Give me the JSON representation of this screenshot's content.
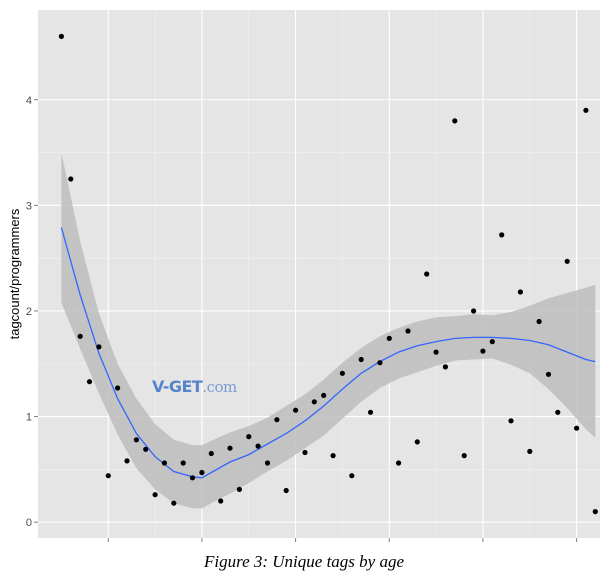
{
  "figure": {
    "caption": "Figure 3: Unique tags by age",
    "watermark": {
      "brand": "V-GET",
      "suffix": ".com"
    }
  },
  "chart_data": {
    "type": "scatter",
    "title": "",
    "xlabel": "",
    "ylabel": "tagcount/programmers",
    "xlim": [
      0.25,
      6.25
    ],
    "ylim": [
      -0.15,
      4.85
    ],
    "x_ticks": [
      1,
      2,
      3,
      4,
      5,
      6
    ],
    "x_tick_labels": [
      "",
      "",
      "",
      "",
      "",
      ""
    ],
    "y_ticks": [
      0,
      1,
      2,
      3,
      4
    ],
    "y_tick_labels": [
      "0",
      "1",
      "2",
      "3",
      "4"
    ],
    "grid": true,
    "colors": {
      "panel": "#e5e5e5",
      "grid": "#ffffff",
      "points": "#000000",
      "smooth_line": "#3366ff",
      "ribbon": "#bdbdbd"
    },
    "points": [
      {
        "x": 0.5,
        "y": 4.6
      },
      {
        "x": 0.6,
        "y": 3.25
      },
      {
        "x": 0.7,
        "y": 1.76
      },
      {
        "x": 0.8,
        "y": 1.33
      },
      {
        "x": 0.9,
        "y": 1.66
      },
      {
        "x": 1.0,
        "y": 0.44
      },
      {
        "x": 1.1,
        "y": 1.27
      },
      {
        "x": 1.2,
        "y": 0.58
      },
      {
        "x": 1.3,
        "y": 0.78
      },
      {
        "x": 1.4,
        "y": 0.69
      },
      {
        "x": 1.5,
        "y": 0.26
      },
      {
        "x": 1.6,
        "y": 0.56
      },
      {
        "x": 1.7,
        "y": 0.18
      },
      {
        "x": 1.8,
        "y": 0.56
      },
      {
        "x": 1.9,
        "y": 0.42
      },
      {
        "x": 2.0,
        "y": 0.47
      },
      {
        "x": 2.1,
        "y": 0.65
      },
      {
        "x": 2.2,
        "y": 0.2
      },
      {
        "x": 2.3,
        "y": 0.7
      },
      {
        "x": 2.4,
        "y": 0.31
      },
      {
        "x": 2.5,
        "y": 0.81
      },
      {
        "x": 2.6,
        "y": 0.72
      },
      {
        "x": 2.7,
        "y": 0.56
      },
      {
        "x": 2.8,
        "y": 0.97
      },
      {
        "x": 2.9,
        "y": 0.3
      },
      {
        "x": 3.0,
        "y": 1.06
      },
      {
        "x": 3.1,
        "y": 0.66
      },
      {
        "x": 3.2,
        "y": 1.14
      },
      {
        "x": 3.3,
        "y": 1.2
      },
      {
        "x": 3.4,
        "y": 0.63
      },
      {
        "x": 3.5,
        "y": 1.41
      },
      {
        "x": 3.6,
        "y": 0.44
      },
      {
        "x": 3.7,
        "y": 1.54
      },
      {
        "x": 3.8,
        "y": 1.04
      },
      {
        "x": 3.9,
        "y": 1.51
      },
      {
        "x": 4.0,
        "y": 1.74
      },
      {
        "x": 4.1,
        "y": 0.56
      },
      {
        "x": 4.2,
        "y": 1.81
      },
      {
        "x": 4.3,
        "y": 0.76
      },
      {
        "x": 4.4,
        "y": 2.35
      },
      {
        "x": 4.5,
        "y": 1.61
      },
      {
        "x": 4.6,
        "y": 1.47
      },
      {
        "x": 4.7,
        "y": 3.8
      },
      {
        "x": 4.8,
        "y": 0.63
      },
      {
        "x": 4.9,
        "y": 2.0
      },
      {
        "x": 5.0,
        "y": 1.62
      },
      {
        "x": 5.1,
        "y": 1.71
      },
      {
        "x": 5.2,
        "y": 2.72
      },
      {
        "x": 5.3,
        "y": 0.96
      },
      {
        "x": 5.4,
        "y": 2.18
      },
      {
        "x": 5.5,
        "y": 0.67
      },
      {
        "x": 5.6,
        "y": 1.9
      },
      {
        "x": 5.7,
        "y": 1.4
      },
      {
        "x": 5.8,
        "y": 1.04
      },
      {
        "x": 5.9,
        "y": 2.47
      },
      {
        "x": 6.0,
        "y": 0.89
      },
      {
        "x": 6.1,
        "y": 3.9
      },
      {
        "x": 6.2,
        "y": 0.1
      }
    ],
    "smooth": {
      "x": [
        0.5,
        0.7,
        0.9,
        1.1,
        1.3,
        1.5,
        1.7,
        1.9,
        2.0,
        2.1,
        2.3,
        2.5,
        2.7,
        2.9,
        3.1,
        3.3,
        3.5,
        3.7,
        3.9,
        4.1,
        4.3,
        4.5,
        4.7,
        4.9,
        5.1,
        5.3,
        5.5,
        5.7,
        5.9,
        6.1,
        6.2
      ],
      "y": [
        2.79,
        2.15,
        1.6,
        1.17,
        0.84,
        0.62,
        0.48,
        0.43,
        0.42,
        0.47,
        0.57,
        0.64,
        0.74,
        0.84,
        0.96,
        1.1,
        1.26,
        1.41,
        1.52,
        1.61,
        1.67,
        1.71,
        1.74,
        1.75,
        1.75,
        1.74,
        1.72,
        1.68,
        1.61,
        1.54,
        1.52
      ],
      "lower": [
        2.08,
        1.64,
        1.22,
        0.83,
        0.51,
        0.31,
        0.18,
        0.13,
        0.13,
        0.18,
        0.27,
        0.37,
        0.48,
        0.58,
        0.7,
        0.82,
        0.98,
        1.14,
        1.27,
        1.36,
        1.42,
        1.48,
        1.53,
        1.54,
        1.55,
        1.49,
        1.41,
        1.26,
        1.08,
        0.88,
        0.8
      ],
      "upper": [
        3.5,
        2.66,
        1.98,
        1.5,
        1.17,
        0.93,
        0.78,
        0.73,
        0.73,
        0.77,
        0.85,
        0.91,
        0.99,
        1.1,
        1.21,
        1.35,
        1.51,
        1.65,
        1.76,
        1.84,
        1.9,
        1.94,
        1.95,
        1.97,
        1.96,
        1.99,
        2.05,
        2.12,
        2.17,
        2.22,
        2.25
      ]
    }
  }
}
